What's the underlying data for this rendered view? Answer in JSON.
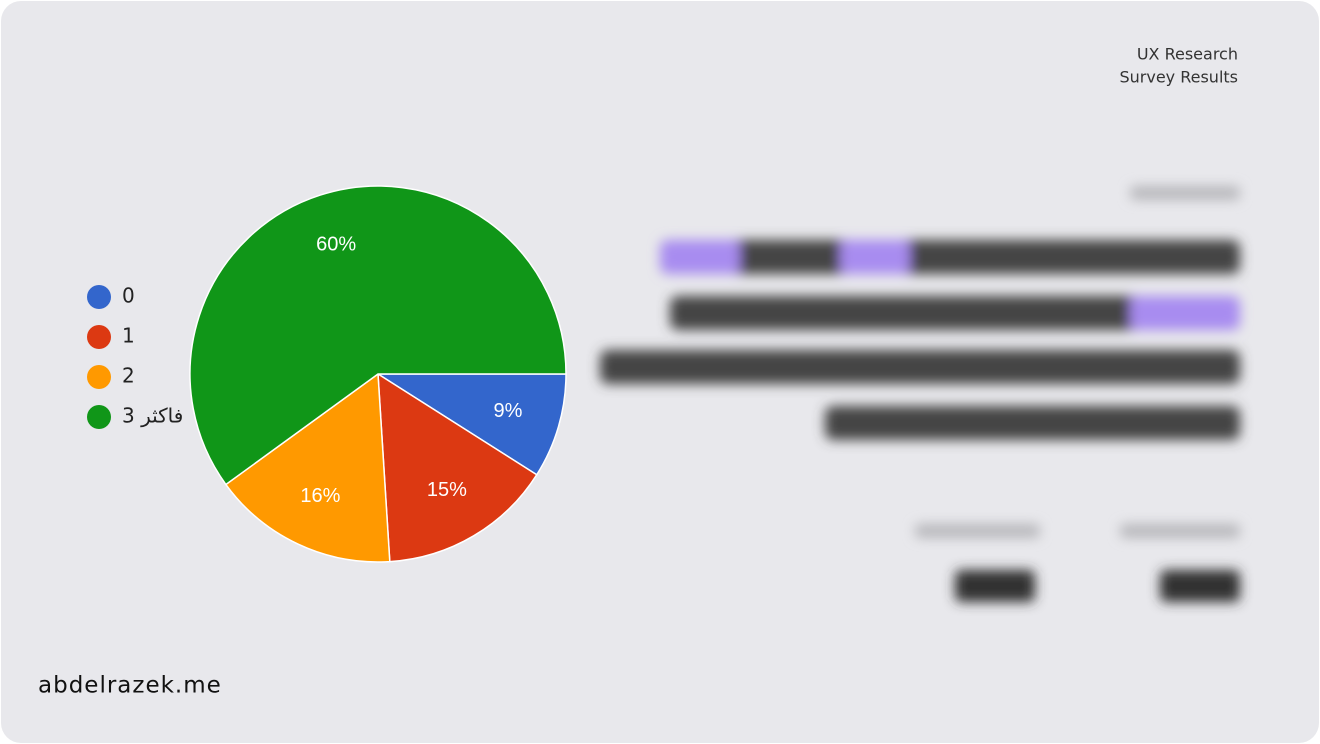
{
  "header": {
    "line1": "UX Research",
    "line2": "Survey Results"
  },
  "footer": "abdelrazek.me",
  "chart_data": {
    "type": "pie",
    "categories": [
      "0",
      "1",
      "2",
      "3 فاكثر"
    ],
    "values": [
      9,
      15,
      16,
      60
    ],
    "value_labels": [
      "9%",
      "15%",
      "16%",
      "60%"
    ],
    "colors": [
      "#3366cc",
      "#dc3912",
      "#ff9900",
      "#109618"
    ]
  }
}
